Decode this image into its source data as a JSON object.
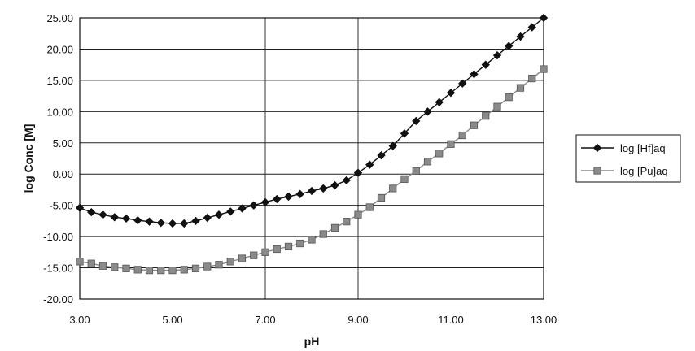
{
  "chart_data": {
    "type": "line",
    "title": "",
    "xlabel": "pH",
    "ylabel": "log Conc [M]",
    "xlim": [
      3,
      13
    ],
    "ylim": [
      -20,
      25
    ],
    "x_ticks": [
      "3.00",
      "5.00",
      "7.00",
      "9.00",
      "11.00",
      "13.00"
    ],
    "y_ticks": [
      "25.00",
      "20.00",
      "15.00",
      "10.00",
      "5.00",
      "0.00",
      "-5.00",
      "-10.00",
      "-15.00",
      "-20.00"
    ],
    "grid": "horizontal",
    "legend_position": "right",
    "series": [
      {
        "name": "log [Hf]aq",
        "marker": "diamond",
        "color": "#111111",
        "x": [
          3.0,
          3.25,
          3.5,
          3.75,
          4.0,
          4.25,
          4.5,
          4.75,
          5.0,
          5.25,
          5.5,
          5.75,
          6.0,
          6.25,
          6.5,
          6.75,
          7.0,
          7.25,
          7.5,
          7.75,
          8.0,
          8.25,
          8.5,
          8.75,
          9.0,
          9.25,
          9.5,
          9.75,
          10.0,
          10.25,
          10.5,
          10.75,
          11.0,
          11.25,
          11.5,
          11.75,
          12.0,
          12.25,
          12.5,
          12.75,
          13.0
        ],
        "y": [
          -5.4,
          -6.1,
          -6.5,
          -6.9,
          -7.1,
          -7.4,
          -7.6,
          -7.8,
          -7.9,
          -7.9,
          -7.5,
          -7.0,
          -6.5,
          -6.0,
          -5.5,
          -5.0,
          -4.5,
          -4.0,
          -3.6,
          -3.2,
          -2.7,
          -2.3,
          -1.8,
          -1.0,
          0.2,
          1.5,
          3.0,
          4.5,
          6.5,
          8.5,
          10.0,
          11.5,
          13.0,
          14.5,
          16.0,
          17.5,
          19.0,
          20.5,
          22.0,
          23.5,
          25.0
        ]
      },
      {
        "name": "log [Pu]aq",
        "marker": "square",
        "color": "#8a8a8a",
        "x": [
          3.0,
          3.25,
          3.5,
          3.75,
          4.0,
          4.25,
          4.5,
          4.75,
          5.0,
          5.25,
          5.5,
          5.75,
          6.0,
          6.25,
          6.5,
          6.75,
          7.0,
          7.25,
          7.5,
          7.75,
          8.0,
          8.25,
          8.5,
          8.75,
          9.0,
          9.25,
          9.5,
          9.75,
          10.0,
          10.25,
          10.5,
          10.75,
          11.0,
          11.25,
          11.5,
          11.75,
          12.0,
          12.25,
          12.5,
          12.75,
          13.0
        ],
        "y": [
          -14.0,
          -14.3,
          -14.7,
          -14.9,
          -15.1,
          -15.3,
          -15.4,
          -15.4,
          -15.4,
          -15.3,
          -15.1,
          -14.8,
          -14.5,
          -14.0,
          -13.5,
          -13.0,
          -12.5,
          -12.0,
          -11.6,
          -11.1,
          -10.5,
          -9.6,
          -8.6,
          -7.6,
          -6.5,
          -5.3,
          -3.8,
          -2.3,
          -0.8,
          0.5,
          2.0,
          3.3,
          4.8,
          6.2,
          7.8,
          9.3,
          10.8,
          12.3,
          13.8,
          15.3,
          16.8
        ]
      }
    ]
  }
}
